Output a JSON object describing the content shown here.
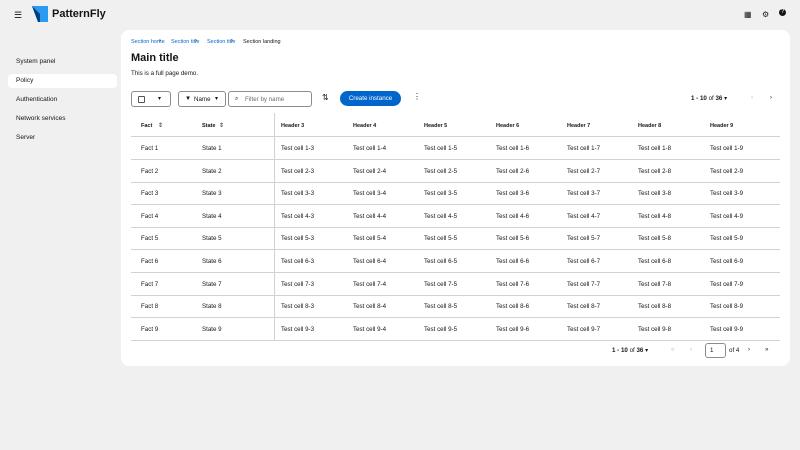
{
  "header": {
    "brand": "PatternFly"
  },
  "nav": {
    "items": [
      "System panel",
      "Policy",
      "Authentication",
      "Network services",
      "Server"
    ],
    "active": 1
  },
  "breadcrumb": [
    "Section home",
    "Section title",
    "Section title",
    "Section landing"
  ],
  "page": {
    "title": "Main title",
    "description": "This is a full page demo."
  },
  "toolbar": {
    "filter_attribute": "Name",
    "filter_placeholder": "Filter by name",
    "primary_action": "Create instance",
    "range": "1 - 10",
    "of": "of",
    "total": "36"
  },
  "table": {
    "headers": [
      "Fact",
      "State",
      "Header 3",
      "Header 4",
      "Header 5",
      "Header 6",
      "Header 7",
      "Header 8",
      "Header 9"
    ],
    "rows": [
      [
        "Fact 1",
        "State 1",
        "Test cell 1-3",
        "Test cell 1-4",
        "Test cell 1-5",
        "Test cell 1-6",
        "Test cell 1-7",
        "Test cell 1-8",
        "Test cell 1-9"
      ],
      [
        "Fact 2",
        "State 2",
        "Test cell 2-3",
        "Test cell 2-4",
        "Test cell 2-5",
        "Test cell 2-6",
        "Test cell 2-7",
        "Test cell 2-8",
        "Test cell 2-9"
      ],
      [
        "Fact 3",
        "State 3",
        "Test cell 3-3",
        "Test cell 3-4",
        "Test cell 3-5",
        "Test cell 3-6",
        "Test cell 3-7",
        "Test cell 3-8",
        "Test cell 3-9"
      ],
      [
        "Fact 4",
        "State 4",
        "Test cell 4-3",
        "Test cell 4-4",
        "Test cell 4-5",
        "Test cell 4-6",
        "Test cell 4-7",
        "Test cell 4-8",
        "Test cell 4-9"
      ],
      [
        "Fact 5",
        "State 5",
        "Test cell 5-3",
        "Test cell 5-4",
        "Test cell 5-5",
        "Test cell 5-6",
        "Test cell 5-7",
        "Test cell 5-8",
        "Test cell 5-9"
      ],
      [
        "Fact 6",
        "State 6",
        "Test cell 6-3",
        "Test cell 6-4",
        "Test cell 6-5",
        "Test cell 6-6",
        "Test cell 6-7",
        "Test cell 6-8",
        "Test cell 6-9"
      ],
      [
        "Fact 7",
        "State 7",
        "Test cell 7-3",
        "Test cell 7-4",
        "Test cell 7-5",
        "Test cell 7-6",
        "Test cell 7-7",
        "Test cell 7-8",
        "Test cell 7-9"
      ],
      [
        "Fact 8",
        "State 8",
        "Test cell 8-3",
        "Test cell 8-4",
        "Test cell 8-5",
        "Test cell 8-6",
        "Test cell 8-7",
        "Test cell 8-8",
        "Test cell 8-9"
      ],
      [
        "Fact 9",
        "State 9",
        "Test cell 9-3",
        "Test cell 9-4",
        "Test cell 9-5",
        "Test cell 9-6",
        "Test cell 9-7",
        "Test cell 9-8",
        "Test cell 9-9"
      ]
    ]
  },
  "pagination": {
    "range": "1 - 10",
    "of": "of",
    "total": "36",
    "page": "1",
    "page_count": "of 4"
  }
}
